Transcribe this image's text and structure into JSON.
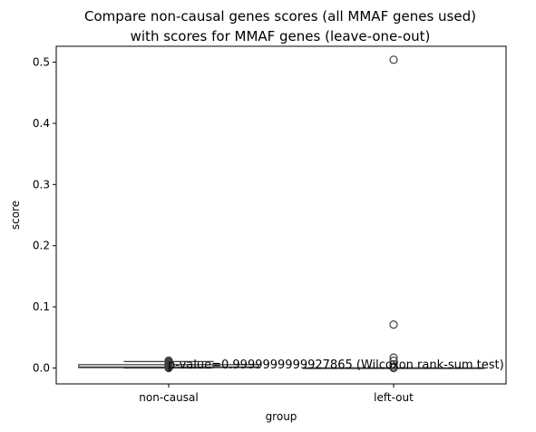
{
  "chart_data": {
    "type": "boxplot",
    "title_lines": [
      "Compare non-causal genes scores (all MMAF genes used)",
      "with scores for MMAF genes (leave-one-out)"
    ],
    "xlabel": "group",
    "ylabel": "score",
    "ylim": [
      -0.026,
      0.526
    ],
    "y_ticks": [
      0.0,
      0.1,
      0.2,
      0.3,
      0.4,
      0.5
    ],
    "y_tick_labels": [
      "0.0",
      "0.1",
      "0.2",
      "0.3",
      "0.4",
      "0.5"
    ],
    "grid": false,
    "legend": "none",
    "categories": [
      "non-causal",
      "left-out"
    ],
    "boxes": [
      {
        "category": "non-causal",
        "q1": 0.0006,
        "median": 0.0015,
        "q3": 0.0055,
        "whisker_low": 0.0,
        "whisker_high": 0.0105,
        "outliers": [
          0.012,
          0.011,
          0.0095,
          0.008,
          0.007,
          0.006,
          0.005,
          0.004,
          0.003,
          0.002,
          0.001,
          0.0
        ]
      },
      {
        "category": "left-out",
        "q1": 0.0,
        "median": 0.0,
        "q3": 0.0,
        "whisker_low": 0.0,
        "whisker_high": 0.0,
        "outliers": [
          0.504,
          0.071,
          0.017,
          0.012,
          0.006,
          0.002,
          0.0
        ]
      }
    ],
    "annotation": "p-value=0.9999999999927865 (Wilcoxon rank-sum test)",
    "colors": {
      "box_edge": "#3f3f3f",
      "box_fill": "#ffffff",
      "axis": "#000000"
    }
  }
}
